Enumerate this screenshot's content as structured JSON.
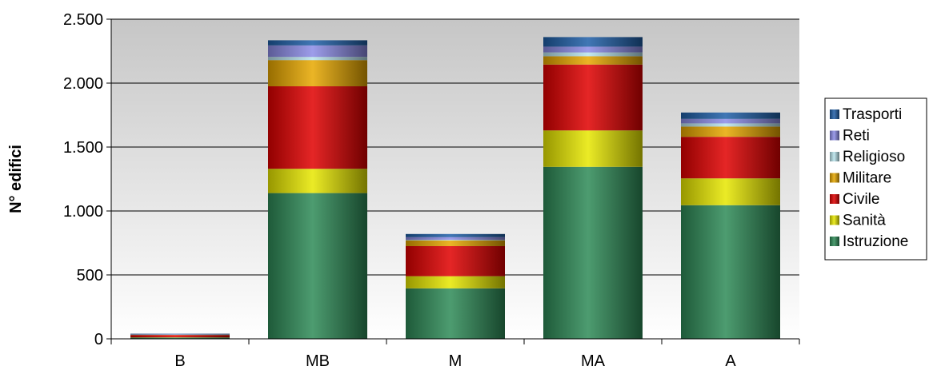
{
  "chart_data": {
    "type": "bar",
    "stacked": true,
    "title": "",
    "xlabel": "",
    "ylabel": "N° edifici",
    "ylim": [
      0,
      2500
    ],
    "y_ticks": [
      0,
      500,
      1000,
      1500,
      2000,
      2500
    ],
    "y_tick_labels": [
      "0",
      "500",
      "1.000",
      "1.500",
      "2.000",
      "2.500"
    ],
    "categories": [
      "B",
      "MB",
      "M",
      "MA",
      "A"
    ],
    "grid": "horizontal",
    "legend_position": "right",
    "series": [
      {
        "name": "Istruzione",
        "color": "#2e8b57",
        "values": [
          10,
          1140,
          395,
          1345,
          1045
        ]
      },
      {
        "name": "Sanità",
        "color": "#e8e800",
        "values": [
          2,
          190,
          95,
          285,
          210
        ]
      },
      {
        "name": "Civile",
        "color": "#e00000",
        "values": [
          18,
          645,
          235,
          515,
          325
        ]
      },
      {
        "name": "Militare",
        "color": "#e8a800",
        "values": [
          2,
          205,
          45,
          65,
          80
        ]
      },
      {
        "name": "Religioso",
        "color": "#b8e4ec",
        "values": [
          1,
          25,
          5,
          30,
          25
        ]
      },
      {
        "name": "Reti",
        "color": "#8c8ce6",
        "values": [
          2,
          90,
          20,
          45,
          35
        ]
      },
      {
        "name": "Trasporti",
        "color": "#1f5fa8",
        "values": [
          5,
          40,
          25,
          75,
          50
        ]
      }
    ]
  }
}
